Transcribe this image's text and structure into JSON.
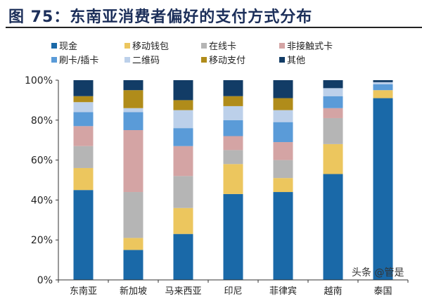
{
  "title": "图 75：东南亚消费者偏好的支付方式分布",
  "watermark": "头条 @管是",
  "chart_data": {
    "type": "bar",
    "stacked": true,
    "title": "图 75：东南亚消费者偏好的支付方式分布",
    "xlabel": "",
    "ylabel": "",
    "ylim": [
      0,
      100
    ],
    "yticks": [
      "0%",
      "20%",
      "40%",
      "60%",
      "80%",
      "100%"
    ],
    "grid": false,
    "legend_position": "top",
    "categories": [
      "东南亚",
      "新加坡",
      "马来西亚",
      "印尼",
      "菲律宾",
      "越南",
      "泰国"
    ],
    "series": [
      {
        "name": "现金",
        "color": "#1a69a8",
        "values": [
          45,
          15,
          23,
          43,
          44,
          53,
          91
        ]
      },
      {
        "name": "移动钱包",
        "color": "#ecc65e",
        "values": [
          11,
          6,
          13,
          15,
          7,
          15,
          4
        ]
      },
      {
        "name": "在线卡",
        "color": "#b5b5b5",
        "values": [
          11,
          23,
          16,
          7,
          9,
          13,
          0
        ]
      },
      {
        "name": "非接触式卡",
        "color": "#d4a4a4",
        "values": [
          10,
          31,
          15,
          7,
          9,
          5,
          0
        ]
      },
      {
        "name": "刷卡/插卡",
        "color": "#5a9bd8",
        "values": [
          7,
          9,
          9,
          8,
          10,
          6,
          3
        ]
      },
      {
        "name": "二维码",
        "color": "#bcd0ea",
        "values": [
          5,
          2,
          9,
          7,
          6,
          4,
          1
        ]
      },
      {
        "name": "移动支付",
        "color": "#b08c1a",
        "values": [
          3,
          9,
          5,
          5,
          6,
          0,
          0
        ]
      },
      {
        "name": "其他",
        "color": "#123c66",
        "values": [
          8,
          5,
          10,
          8,
          9,
          4,
          1
        ]
      }
    ]
  }
}
